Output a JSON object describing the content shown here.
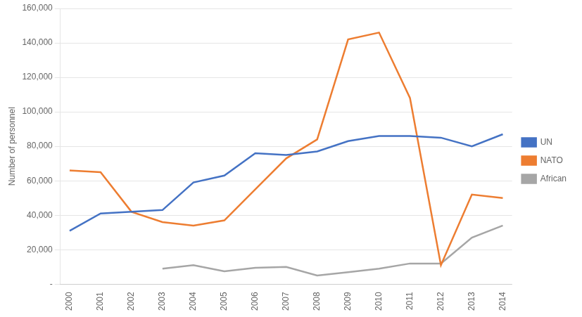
{
  "chart_data": {
    "type": "line",
    "ylabel": "Number of personnel",
    "x": [
      2000,
      2001,
      2002,
      2003,
      2004,
      2005,
      2006,
      2007,
      2008,
      2009,
      2010,
      2011,
      2012,
      2013,
      2014
    ],
    "series": [
      {
        "name": "UN",
        "color": "#4472C4",
        "values": [
          31000,
          41000,
          42000,
          43000,
          59000,
          63000,
          76000,
          75000,
          77000,
          83000,
          86000,
          86000,
          85000,
          80000,
          87000
        ]
      },
      {
        "name": "NATO",
        "color": "#ED7D31",
        "values": [
          66000,
          65000,
          42000,
          36000,
          34000,
          37000,
          55000,
          73000,
          84000,
          142000,
          146000,
          108000,
          11000,
          52000,
          50000
        ]
      },
      {
        "name": "African",
        "color": "#A6A6A6",
        "values": [
          null,
          null,
          null,
          9000,
          11000,
          7500,
          9500,
          10000,
          5000,
          7000,
          9000,
          12000,
          12000,
          27000,
          34000
        ]
      }
    ],
    "xlim": [
      1999.7,
      2014.3
    ],
    "xticks": [
      2000,
      2001,
      2002,
      2003,
      2004,
      2005,
      2006,
      2007,
      2008,
      2009,
      2010,
      2011,
      2012,
      2013,
      2014
    ],
    "ylim": [
      0,
      160000
    ],
    "yticks": [
      {
        "value": 0,
        "label": "-"
      },
      {
        "value": 20000,
        "label": "20,000"
      },
      {
        "value": 40000,
        "label": "40,000"
      },
      {
        "value": 60000,
        "label": "60,000"
      },
      {
        "value": 80000,
        "label": "80,000"
      },
      {
        "value": 100000,
        "label": "100,000"
      },
      {
        "value": 120000,
        "label": "120,000"
      },
      {
        "value": 140000,
        "label": "140,000"
      },
      {
        "value": 160000,
        "label": "160,000"
      }
    ],
    "grid": "y",
    "legend": "right"
  }
}
